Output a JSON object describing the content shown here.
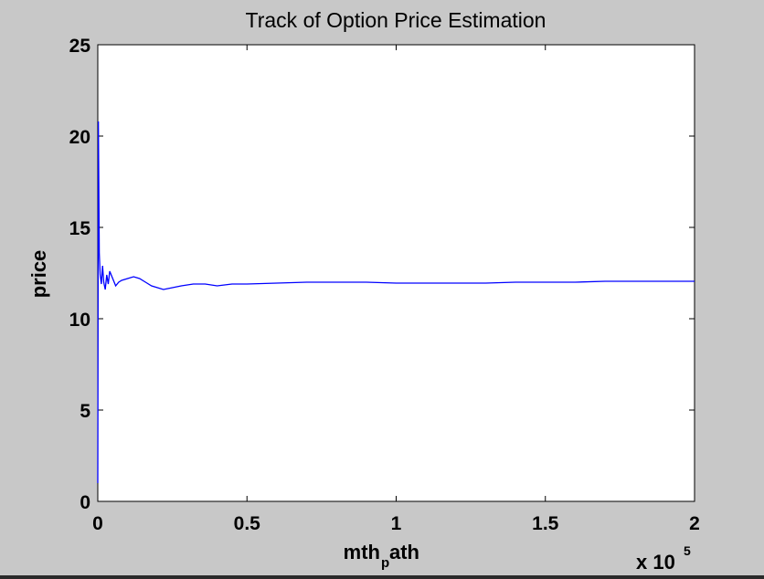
{
  "chart_data": {
    "type": "line",
    "title": "Track of Option Price Estimation",
    "ylabel": "price",
    "xlabel_parts": [
      "mth",
      "p",
      "ath"
    ],
    "x_multiplier": {
      "base": "x 10",
      "exponent": "5"
    },
    "xlim": [
      0,
      200000
    ],
    "ylim": [
      0,
      25
    ],
    "x_ticks": [
      0,
      50000,
      100000,
      150000,
      200000
    ],
    "x_tick_labels": [
      "0",
      "0.5",
      "1",
      "1.5",
      "2"
    ],
    "y_ticks": [
      0,
      5,
      10,
      15,
      20,
      25
    ],
    "y_tick_labels": [
      "0",
      "5",
      "10",
      "15",
      "20",
      "25"
    ],
    "grid": false,
    "series": [
      {
        "color": "#0000ff",
        "x": [
          0,
          200,
          500,
          800,
          1200,
          1600,
          2000,
          2500,
          3000,
          3500,
          4000,
          5000,
          6000,
          7000,
          8000,
          10000,
          12000,
          14000,
          16000,
          18000,
          20000,
          22000,
          25000,
          28000,
          32000,
          36000,
          40000,
          45000,
          50000,
          60000,
          70000,
          80000,
          90000,
          100000,
          110000,
          120000,
          130000,
          140000,
          150000,
          160000,
          170000,
          180000,
          190000,
          200000
        ],
        "y": [
          1.0,
          20.8,
          13.6,
          12.4,
          11.9,
          12.9,
          12.0,
          11.6,
          12.4,
          11.9,
          12.6,
          12.2,
          11.8,
          12.0,
          12.1,
          12.2,
          12.3,
          12.2,
          12.0,
          11.8,
          11.7,
          11.6,
          11.7,
          11.8,
          11.9,
          11.9,
          11.8,
          11.9,
          11.9,
          11.95,
          12.0,
          12.0,
          12.0,
          11.95,
          11.95,
          11.95,
          11.95,
          12.0,
          12.0,
          12.0,
          12.05,
          12.05,
          12.05,
          12.05
        ]
      }
    ]
  }
}
